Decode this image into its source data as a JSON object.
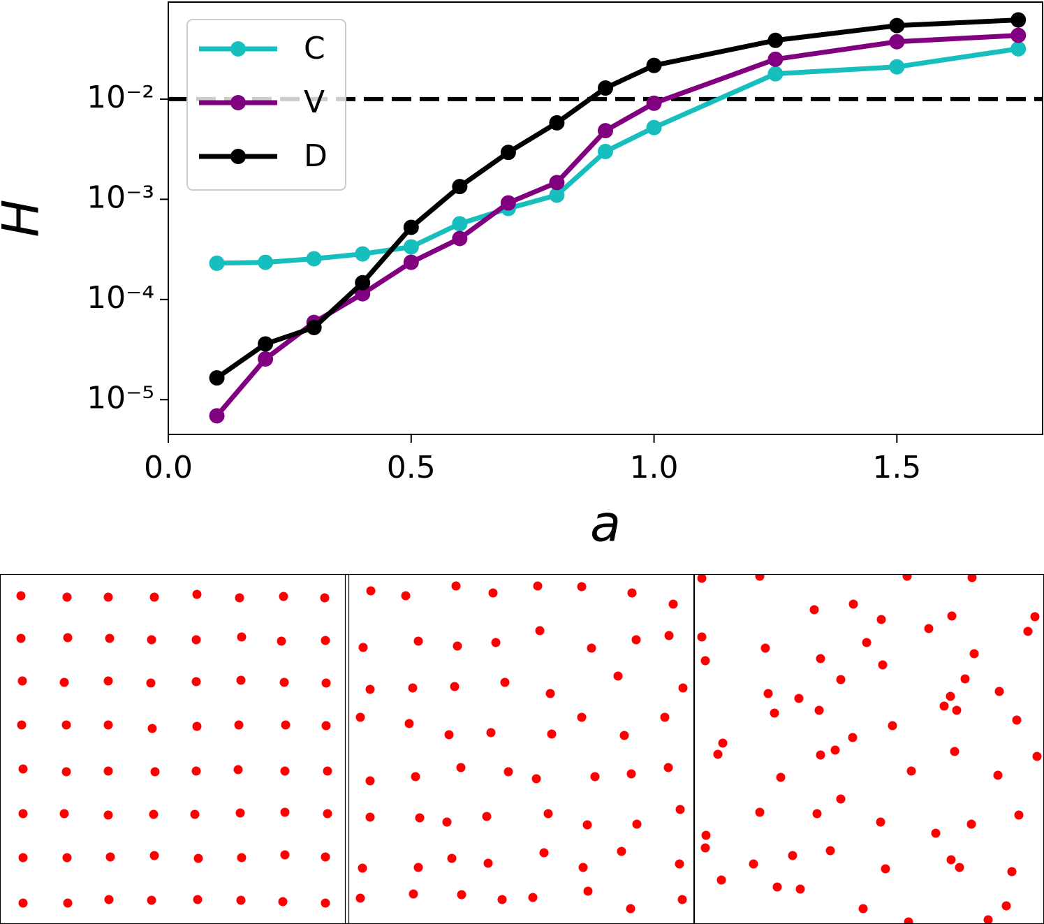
{
  "chart_data": [
    {
      "type": "line",
      "xlabel": "a",
      "ylabel": "H",
      "log_y": true,
      "legend": "upper left",
      "x": [
        0.1,
        0.2,
        0.3,
        0.4,
        0.5,
        0.6,
        0.7,
        0.8,
        0.9,
        1.0,
        1.25,
        1.5,
        1.75
      ],
      "series": [
        {
          "name": "C",
          "color": "#17bebe",
          "values": [
            0.00023,
            0.000235,
            0.000255,
            0.000285,
            0.000335,
            0.00057,
            0.00081,
            0.0011,
            0.003,
            0.0052,
            0.0179,
            0.021,
            0.0318
          ]
        },
        {
          "name": "V",
          "color": "#800080",
          "values": [
            6.9e-06,
            2.55e-05,
            5.9e-05,
            0.000114,
            0.000235,
            0.000406,
            0.00092,
            0.00147,
            0.00484,
            0.0091,
            0.025,
            0.0374,
            0.0433
          ]
        },
        {
          "name": "D",
          "color": "#000000",
          "values": [
            1.65e-05,
            3.6e-05,
            5.25e-05,
            0.000147,
            0.000525,
            0.00134,
            0.00294,
            0.0058,
            0.0129,
            0.0217,
            0.0386,
            0.0542,
            0.0617
          ]
        }
      ],
      "hline": 0.01,
      "xlim": [
        0,
        1.8
      ],
      "xticks": [
        {
          "value": 0,
          "label": "0.0"
        },
        0.5,
        {
          "value": 1,
          "label": "1.0"
        },
        1.5
      ],
      "ylim": [
        4.5e-06,
        0.093
      ],
      "yticks": [
        {
          "value": 1e-05,
          "label": "10⁻⁵"
        },
        {
          "value": 0.0001,
          "label": "10⁻⁴"
        },
        {
          "value": 0.001,
          "label": "10⁻³"
        },
        {
          "value": 0.01,
          "label": "10⁻²"
        }
      ]
    },
    {
      "type": "scatter",
      "color": "#ff0000",
      "xlim": [
        0,
        500
      ],
      "ylim": [
        500,
        0
      ],
      "x": [
        30,
        96,
        155,
        221,
        282,
        343,
        406,
        465,
        30,
        97,
        157,
        217,
        281,
        346,
        403,
        466,
        32,
        92,
        155,
        216,
        281,
        345,
        407,
        467,
        31,
        95,
        155,
        218,
        282,
        342,
        409,
        467,
        33,
        95,
        155,
        222,
        281,
        341,
        408,
        469,
        33,
        92,
        155,
        220,
        279,
        344,
        408,
        469,
        33,
        96,
        158,
        221,
        284,
        346,
        408,
        466,
        33,
        97,
        156,
        217,
        283,
        345,
        405,
        466
      ],
      "y": [
        31,
        33,
        33,
        33,
        29,
        34,
        32,
        34,
        92,
        91,
        92,
        94,
        94,
        90,
        96,
        95,
        153,
        155,
        153,
        156,
        154,
        152,
        155,
        156,
        216,
        216,
        216,
        221,
        218,
        216,
        216,
        217,
        279,
        283,
        282,
        283,
        282,
        280,
        282,
        282,
        343,
        343,
        345,
        344,
        344,
        342,
        341,
        343,
        406,
        406,
        405,
        403,
        407,
        406,
        402,
        405,
        471,
        471,
        466,
        467,
        466,
        467,
        469,
        471
      ]
    },
    {
      "type": "scatter",
      "color": "#ff0000",
      "xlim": [
        0,
        500
      ],
      "ylim": [
        500,
        0
      ],
      "x": [
        37,
        87,
        159,
        212,
        276,
        339,
        411,
        470,
        26,
        105,
        161,
        216,
        279,
        353,
        417,
        464,
        36,
        97,
        157,
        229,
        294,
        391,
        484,
        22,
        92,
        149,
        209,
        339,
        296,
        400,
        458,
        36,
        101,
        166,
        234,
        274,
        358,
        410,
        463,
        36,
        107,
        146,
        203,
        291,
        347,
        418,
        480,
        25,
        105,
        153,
        205,
        285,
        341,
        396,
        479,
        22,
        98,
        167,
        225,
        269,
        348,
        409,
        483
      ],
      "y": [
        24,
        31,
        17,
        27,
        17,
        18,
        27,
        43,
        105,
        96,
        103,
        98,
        81,
        106,
        94,
        88,
        165,
        163,
        161,
        155,
        171,
        146,
        163,
        205,
        214,
        230,
        227,
        205,
        229,
        231,
        205,
        296,
        290,
        277,
        283,
        293,
        290,
        286,
        277,
        348,
        349,
        355,
        347,
        343,
        359,
        358,
        337,
        421,
        420,
        407,
        414,
        399,
        420,
        397,
        415,
        464,
        458,
        459,
        466,
        463,
        454,
        479,
        466
      ]
    },
    {
      "type": "scatter",
      "color": "#ff0000",
      "xlim": [
        0,
        500
      ],
      "ylim": [
        500,
        0
      ],
      "x": [
        11,
        94,
        305,
        398,
        172,
        228,
        268,
        336,
        369,
        488,
        478,
        11,
        16,
        102,
        181,
        247,
        270,
        401,
        106,
        150,
        210,
        115,
        179,
        388,
        437,
        367,
        358,
        376,
        41,
        34,
        227,
        284,
        202,
        181,
        462,
        373,
        491,
        124,
        311,
        435,
        210,
        94,
        176,
        267,
        465,
        346,
        397,
        17,
        16,
        85,
        141,
        195,
        274,
        368,
        380,
        455,
        39,
        119,
        152,
        242,
        307,
        421,
        447
      ],
      "y": [
        6,
        3,
        3,
        5,
        51,
        43,
        65,
        78,
        60,
        61,
        82,
        90,
        124,
        106,
        121,
        98,
        130,
        114,
        171,
        178,
        151,
        199,
        195,
        150,
        168,
        175,
        189,
        195,
        242,
        258,
        234,
        217,
        252,
        259,
        209,
        254,
        261,
        291,
        282,
        288,
        322,
        341,
        343,
        355,
        345,
        371,
        358,
        374,
        392,
        415,
        403,
        396,
        422,
        409,
        420,
        426,
        438,
        448,
        451,
        479,
        498,
        495,
        475
      ]
    }
  ]
}
